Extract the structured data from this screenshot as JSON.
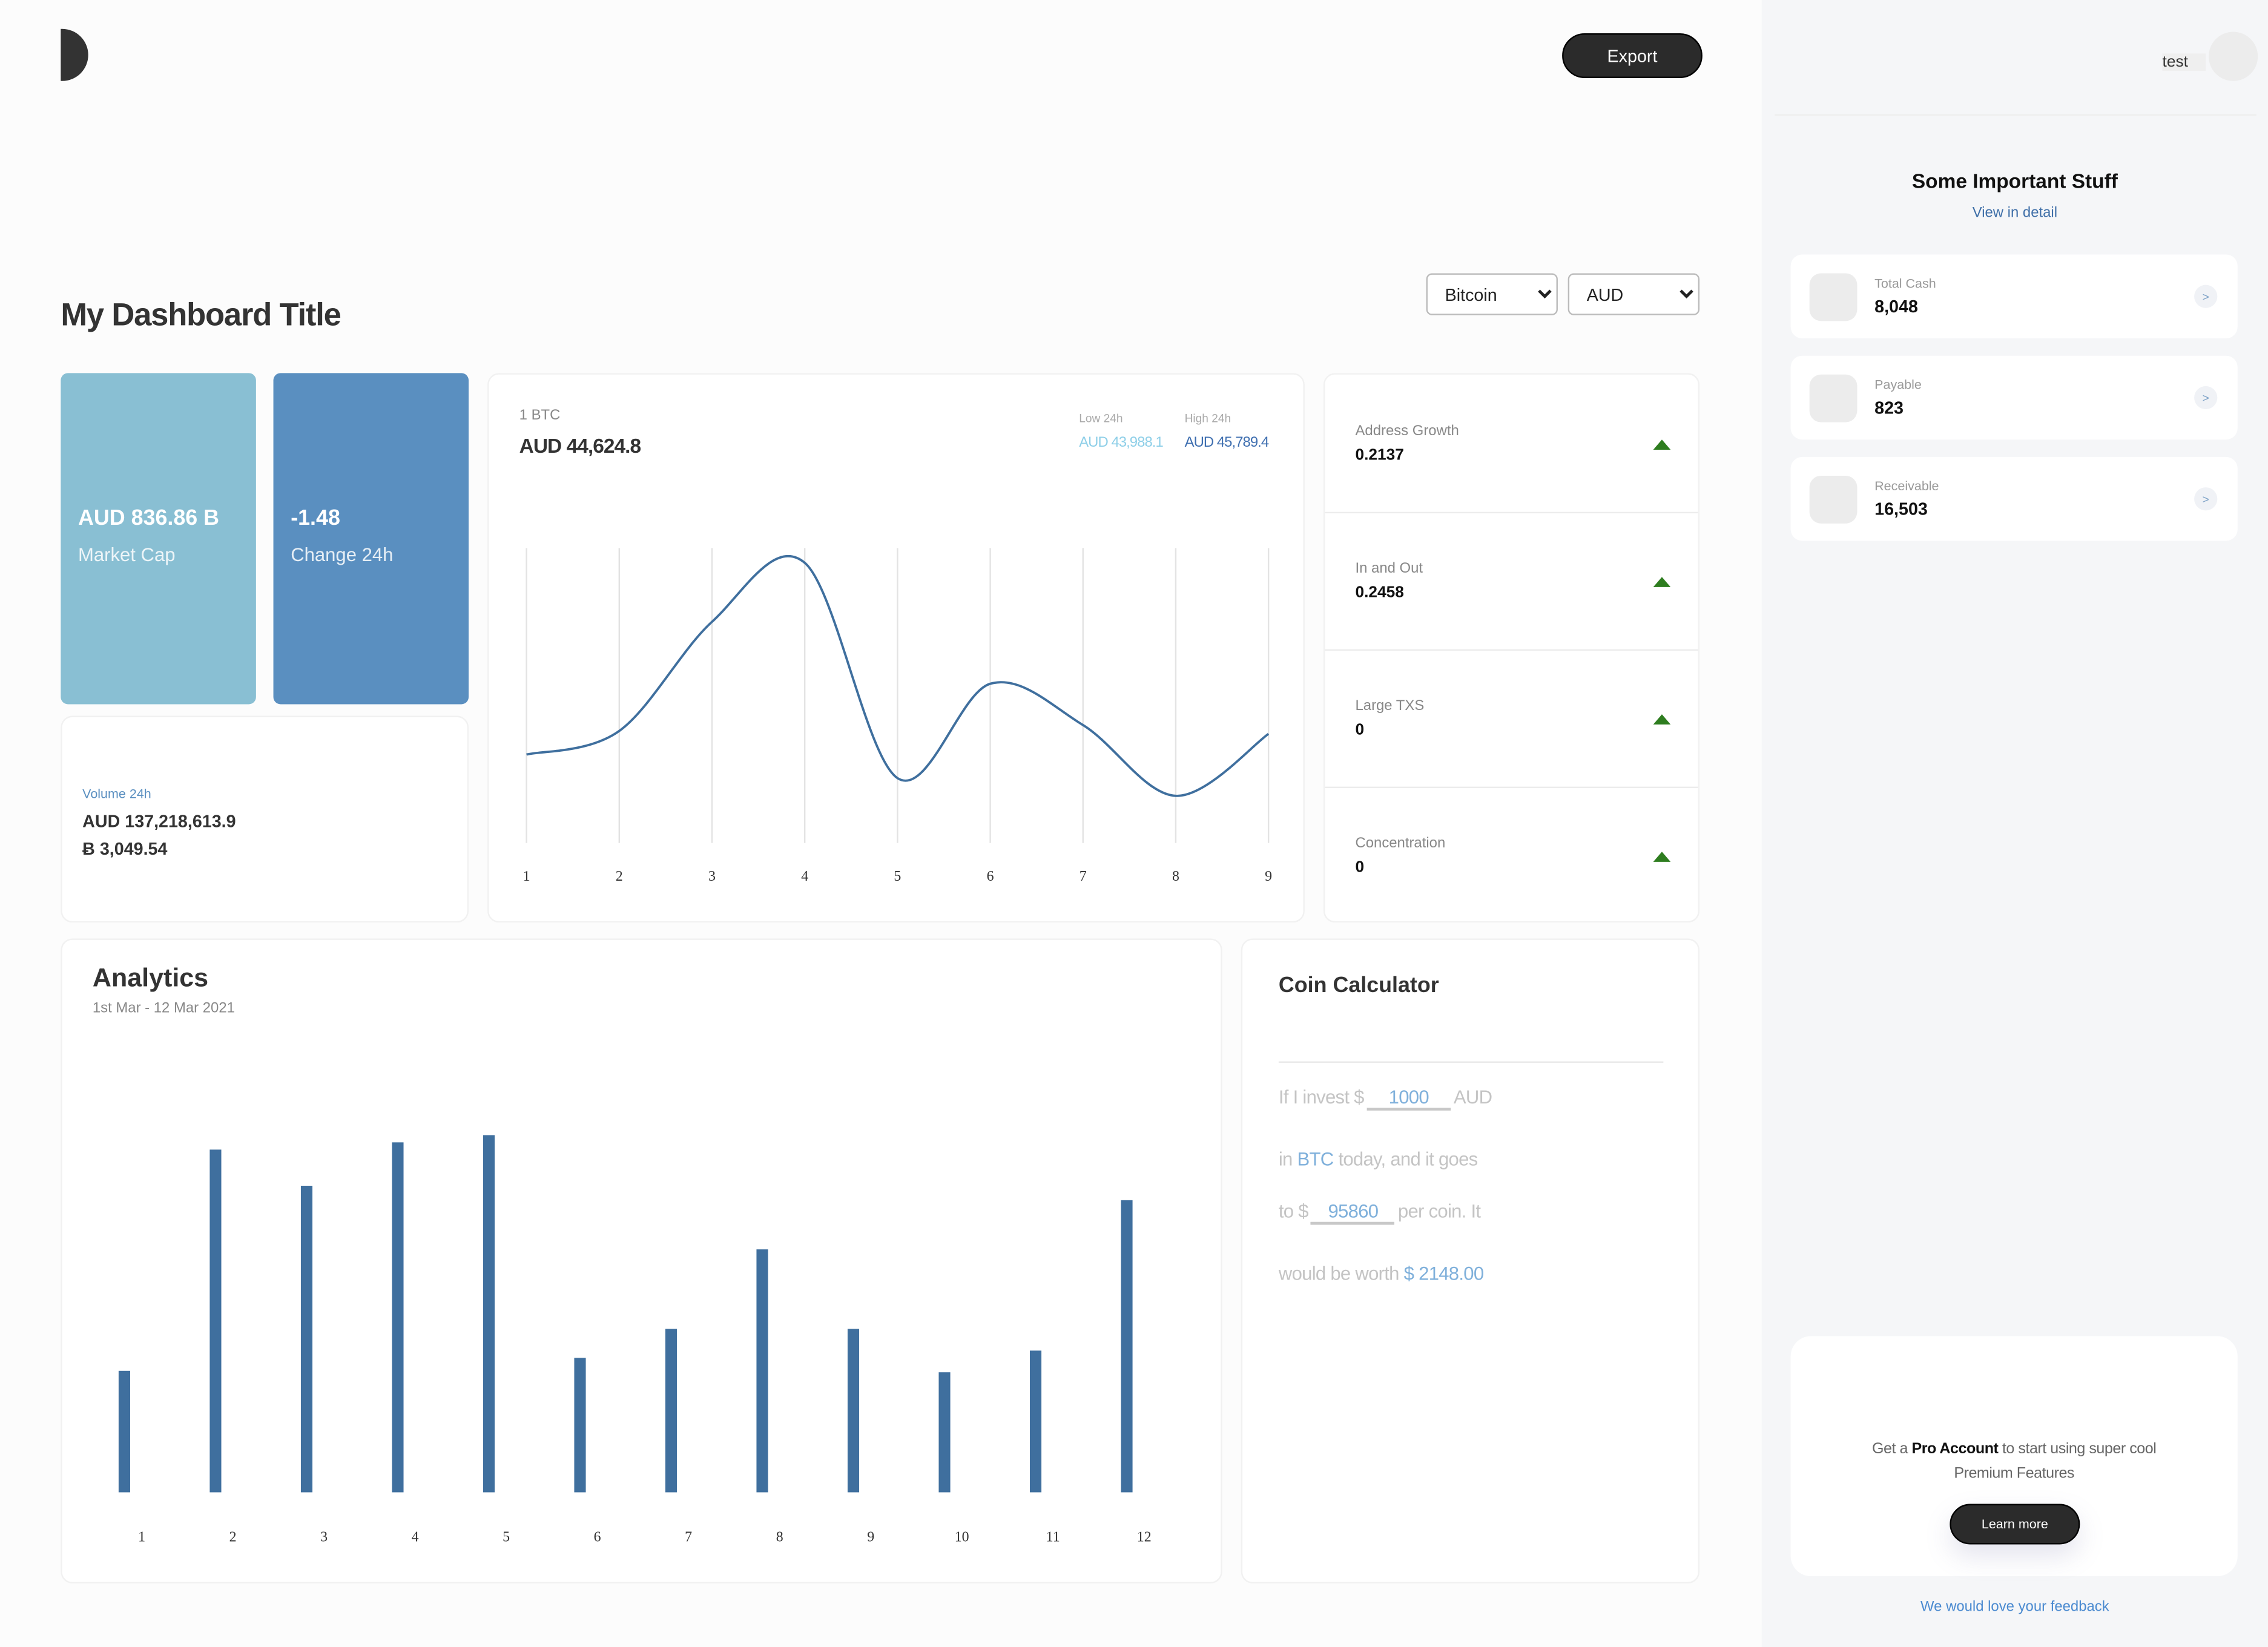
{
  "header": {
    "export_label": "Export",
    "title": "My Dashboard Title"
  },
  "filters": {
    "coin": "Bitcoin",
    "currency": "AUD"
  },
  "stats": {
    "market_cap": {
      "value": "AUD 836.86 B",
      "label": "Market Cap",
      "color": "#89bfd3"
    },
    "change": {
      "value": "-1.48",
      "label": "Change 24h",
      "color": "#5a8fc0"
    }
  },
  "volume": {
    "label": "Volume 24h",
    "aud": "AUD 137,218,613.9",
    "btc": "Ƀ 3,049.54"
  },
  "price": {
    "unit": "1 BTC",
    "value": "AUD 44,624.8",
    "low_label": "Low 24h",
    "low_value": "AUD 43,988.1",
    "high_label": "High 24h",
    "high_value": "AUD 45,789.4"
  },
  "metrics": [
    {
      "label": "Address Growth",
      "value": "0.2137",
      "trend": "up"
    },
    {
      "label": "In and Out",
      "value": "0.2458",
      "trend": "up"
    },
    {
      "label": "Large TXS",
      "value": "0",
      "trend": "up"
    },
    {
      "label": "Concentration",
      "value": "0",
      "trend": "up"
    }
  ],
  "analytics": {
    "title": "Analytics",
    "date_range": "1st Mar - 12 Mar 2021"
  },
  "calculator": {
    "title": "Coin Calculator",
    "line1_pre": "If I invest $",
    "invest": "1000",
    "line1_post": "AUD",
    "line2_pre": "in",
    "coin": "BTC",
    "line2_post": "today, and it goes",
    "line3_pre": "to $",
    "target": "95860",
    "line3_post": "per coin. It",
    "line4_pre": "would be worth",
    "result": "$ 2148.00"
  },
  "sidebar": {
    "user": "test",
    "title": "Some Important Stuff",
    "link": "View in detail",
    "items": [
      {
        "label": "Total Cash",
        "value": "8,048"
      },
      {
        "label": "Payable",
        "value": "823"
      },
      {
        "label": "Receivable",
        "value": "16,503"
      }
    ],
    "chevron": ">",
    "promo_pre": "Get a",
    "promo_bold": "Pro Account",
    "promo_post": "to start using super cool Premium Features",
    "learn_more": "Learn more",
    "feedback": "We would love your feedback"
  },
  "chart_data": [
    {
      "type": "line",
      "x": [
        1,
        2,
        3,
        4,
        5,
        6,
        7,
        8,
        9
      ],
      "values": [
        30,
        38,
        75,
        95,
        22,
        54,
        40,
        16,
        37
      ],
      "ylim": [
        0,
        100
      ],
      "grid": "vertical",
      "color": "#3f6f9e",
      "smooth": true
    },
    {
      "type": "bar",
      "categories": [
        "1",
        "2",
        "3",
        "4",
        "5",
        "6",
        "7",
        "8",
        "9",
        "10",
        "11",
        "12"
      ],
      "values": [
        84,
        237,
        212,
        242,
        247,
        93,
        113,
        168,
        113,
        83,
        98,
        202
      ],
      "ylim": [
        0,
        300
      ],
      "grid": false,
      "color": "#3f6f9e"
    }
  ]
}
